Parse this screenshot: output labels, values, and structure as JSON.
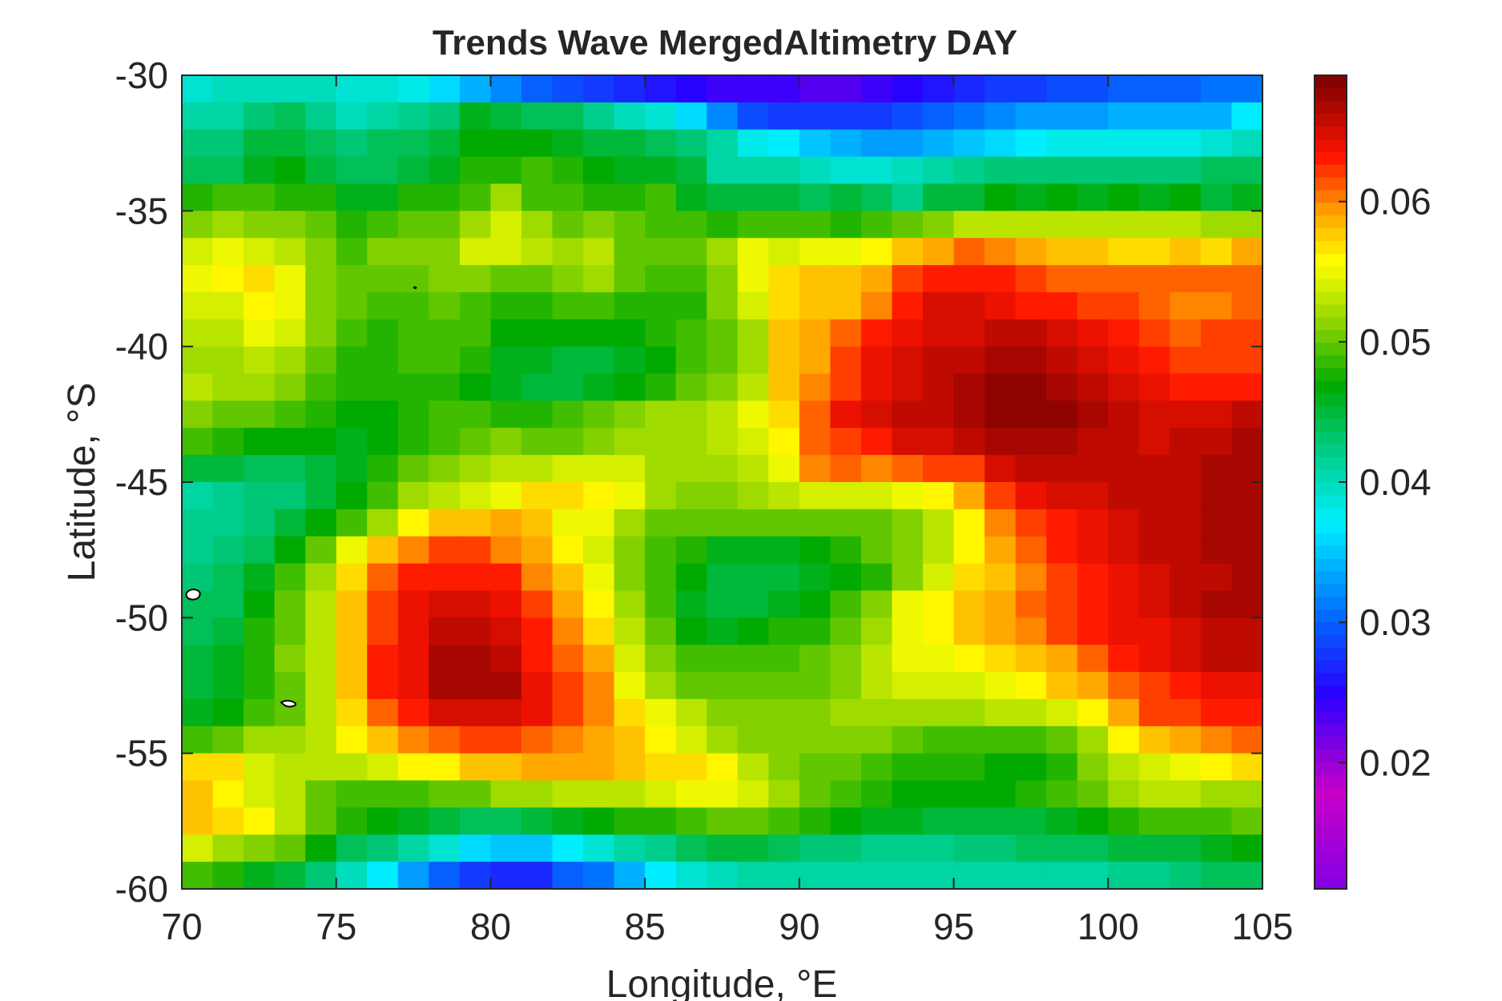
{
  "chart_data": {
    "type": "heatmap",
    "title": "Trends Wave MergedAltimetry DAY",
    "xlabel": "Longitude, °E",
    "ylabel": "Latitude, °S",
    "xlim": [
      70,
      105
    ],
    "ylim": [
      -60,
      -30
    ],
    "xticks": [
      "70",
      "75",
      "80",
      "85",
      "90",
      "95",
      "100",
      "105"
    ],
    "xtick_values": [
      70,
      75,
      80,
      85,
      90,
      95,
      100,
      105
    ],
    "yticks": [
      "-30",
      "-35",
      "-40",
      "-45",
      "-50",
      "-55",
      "-60"
    ],
    "ytick_values": [
      -30,
      -35,
      -40,
      -45,
      -50,
      -55,
      -60
    ],
    "colorbar": {
      "range": [
        0.011,
        0.069
      ],
      "ticks": [
        "0.02",
        "0.03",
        "0.04",
        "0.05",
        "0.06"
      ],
      "tick_values": [
        0.02,
        0.03,
        0.04,
        0.05,
        0.06
      ],
      "colormap": "jet-like (purple, blue, cyan, green, yellow, orange, red, dark red)"
    },
    "grid_cell_size_deg": 1,
    "grid_origin": {
      "lon": 70,
      "lat": -30
    },
    "grid_ncols": 35,
    "grid_nrows": 30,
    "land_outlines": "small islands near 70.3°E 49.5°S and 73.5°E 52.7°S",
    "values": [
      [
        0.039,
        0.04,
        0.04,
        0.04,
        0.04,
        0.039,
        0.039,
        0.038,
        0.036,
        0.034,
        0.032,
        0.03,
        0.029,
        0.028,
        0.027,
        0.026,
        0.025,
        0.024,
        0.024,
        0.024,
        0.023,
        0.023,
        0.024,
        0.025,
        0.026,
        0.027,
        0.028,
        0.028,
        0.029,
        0.029,
        0.03,
        0.03,
        0.03,
        0.031,
        0.031
      ],
      [
        0.041,
        0.041,
        0.043,
        0.044,
        0.042,
        0.04,
        0.041,
        0.042,
        0.043,
        0.046,
        0.045,
        0.044,
        0.044,
        0.042,
        0.04,
        0.039,
        0.036,
        0.032,
        0.029,
        0.028,
        0.028,
        0.028,
        0.028,
        0.029,
        0.03,
        0.031,
        0.032,
        0.033,
        0.033,
        0.033,
        0.034,
        0.034,
        0.034,
        0.034,
        0.037
      ],
      [
        0.043,
        0.043,
        0.045,
        0.045,
        0.044,
        0.043,
        0.044,
        0.044,
        0.045,
        0.047,
        0.047,
        0.047,
        0.046,
        0.045,
        0.045,
        0.044,
        0.043,
        0.041,
        0.038,
        0.037,
        0.035,
        0.034,
        0.033,
        0.033,
        0.034,
        0.035,
        0.036,
        0.037,
        0.038,
        0.038,
        0.038,
        0.038,
        0.038,
        0.039,
        0.04
      ],
      [
        0.044,
        0.044,
        0.046,
        0.047,
        0.045,
        0.044,
        0.044,
        0.045,
        0.046,
        0.048,
        0.048,
        0.049,
        0.048,
        0.047,
        0.046,
        0.046,
        0.045,
        0.041,
        0.041,
        0.041,
        0.04,
        0.039,
        0.039,
        0.04,
        0.041,
        0.042,
        0.043,
        0.043,
        0.043,
        0.043,
        0.043,
        0.043,
        0.043,
        0.044,
        0.044
      ],
      [
        0.048,
        0.049,
        0.049,
        0.048,
        0.048,
        0.046,
        0.046,
        0.048,
        0.048,
        0.049,
        0.052,
        0.049,
        0.049,
        0.048,
        0.048,
        0.049,
        0.046,
        0.045,
        0.045,
        0.045,
        0.044,
        0.045,
        0.044,
        0.042,
        0.045,
        0.045,
        0.047,
        0.046,
        0.047,
        0.046,
        0.047,
        0.046,
        0.047,
        0.045,
        0.046
      ],
      [
        0.051,
        0.052,
        0.051,
        0.051,
        0.05,
        0.048,
        0.049,
        0.05,
        0.05,
        0.052,
        0.054,
        0.052,
        0.05,
        0.051,
        0.05,
        0.049,
        0.049,
        0.048,
        0.049,
        0.049,
        0.049,
        0.048,
        0.049,
        0.05,
        0.051,
        0.053,
        0.053,
        0.053,
        0.053,
        0.053,
        0.053,
        0.053,
        0.053,
        0.052,
        0.052
      ],
      [
        0.054,
        0.055,
        0.054,
        0.053,
        0.051,
        0.049,
        0.051,
        0.051,
        0.051,
        0.054,
        0.054,
        0.053,
        0.052,
        0.053,
        0.05,
        0.05,
        0.05,
        0.052,
        0.055,
        0.054,
        0.055,
        0.055,
        0.056,
        0.058,
        0.059,
        0.061,
        0.06,
        0.059,
        0.058,
        0.058,
        0.057,
        0.057,
        0.058,
        0.057,
        0.059
      ],
      [
        0.055,
        0.056,
        0.057,
        0.055,
        0.051,
        0.05,
        0.05,
        0.05,
        0.051,
        0.051,
        0.05,
        0.05,
        0.051,
        0.052,
        0.05,
        0.049,
        0.049,
        0.051,
        0.055,
        0.057,
        0.058,
        0.058,
        0.059,
        0.062,
        0.063,
        0.063,
        0.063,
        0.062,
        0.061,
        0.061,
        0.061,
        0.061,
        0.061,
        0.061,
        0.061
      ],
      [
        0.054,
        0.054,
        0.056,
        0.055,
        0.051,
        0.05,
        0.049,
        0.049,
        0.05,
        0.049,
        0.048,
        0.048,
        0.049,
        0.049,
        0.048,
        0.048,
        0.048,
        0.051,
        0.054,
        0.057,
        0.058,
        0.058,
        0.06,
        0.063,
        0.065,
        0.065,
        0.064,
        0.063,
        0.063,
        0.062,
        0.062,
        0.061,
        0.06,
        0.06,
        0.061
      ],
      [
        0.053,
        0.053,
        0.055,
        0.054,
        0.051,
        0.049,
        0.048,
        0.049,
        0.049,
        0.049,
        0.047,
        0.047,
        0.047,
        0.047,
        0.047,
        0.048,
        0.049,
        0.05,
        0.052,
        0.058,
        0.059,
        0.061,
        0.063,
        0.064,
        0.065,
        0.065,
        0.066,
        0.066,
        0.065,
        0.064,
        0.063,
        0.062,
        0.061,
        0.062,
        0.062
      ],
      [
        0.052,
        0.052,
        0.053,
        0.052,
        0.05,
        0.048,
        0.048,
        0.049,
        0.049,
        0.048,
        0.046,
        0.046,
        0.045,
        0.045,
        0.046,
        0.047,
        0.049,
        0.05,
        0.052,
        0.058,
        0.059,
        0.062,
        0.064,
        0.065,
        0.066,
        0.066,
        0.067,
        0.067,
        0.066,
        0.065,
        0.064,
        0.063,
        0.062,
        0.062,
        0.062
      ],
      [
        0.053,
        0.052,
        0.052,
        0.051,
        0.049,
        0.048,
        0.048,
        0.048,
        0.048,
        0.047,
        0.046,
        0.045,
        0.045,
        0.046,
        0.047,
        0.048,
        0.05,
        0.051,
        0.053,
        0.058,
        0.06,
        0.062,
        0.064,
        0.065,
        0.066,
        0.067,
        0.068,
        0.068,
        0.067,
        0.066,
        0.065,
        0.064,
        0.063,
        0.063,
        0.063
      ],
      [
        0.051,
        0.05,
        0.05,
        0.049,
        0.048,
        0.047,
        0.047,
        0.048,
        0.049,
        0.049,
        0.048,
        0.048,
        0.049,
        0.05,
        0.051,
        0.052,
        0.052,
        0.053,
        0.055,
        0.057,
        0.061,
        0.064,
        0.065,
        0.066,
        0.066,
        0.067,
        0.068,
        0.068,
        0.068,
        0.067,
        0.066,
        0.065,
        0.065,
        0.065,
        0.066
      ],
      [
        0.049,
        0.048,
        0.047,
        0.047,
        0.047,
        0.046,
        0.047,
        0.048,
        0.049,
        0.05,
        0.051,
        0.05,
        0.05,
        0.051,
        0.052,
        0.052,
        0.052,
        0.053,
        0.054,
        0.056,
        0.061,
        0.062,
        0.063,
        0.065,
        0.065,
        0.066,
        0.067,
        0.067,
        0.067,
        0.066,
        0.066,
        0.065,
        0.066,
        0.066,
        0.067
      ],
      [
        0.045,
        0.045,
        0.044,
        0.044,
        0.045,
        0.046,
        0.048,
        0.05,
        0.051,
        0.052,
        0.053,
        0.053,
        0.054,
        0.054,
        0.054,
        0.052,
        0.052,
        0.052,
        0.053,
        0.055,
        0.06,
        0.061,
        0.06,
        0.061,
        0.062,
        0.062,
        0.065,
        0.066,
        0.066,
        0.066,
        0.066,
        0.066,
        0.066,
        0.067,
        0.067
      ],
      [
        0.041,
        0.042,
        0.043,
        0.043,
        0.045,
        0.047,
        0.049,
        0.052,
        0.053,
        0.054,
        0.055,
        0.057,
        0.057,
        0.056,
        0.055,
        0.052,
        0.051,
        0.051,
        0.052,
        0.053,
        0.054,
        0.054,
        0.054,
        0.055,
        0.056,
        0.059,
        0.062,
        0.064,
        0.065,
        0.065,
        0.066,
        0.066,
        0.066,
        0.067,
        0.067
      ],
      [
        0.042,
        0.042,
        0.043,
        0.045,
        0.047,
        0.049,
        0.052,
        0.056,
        0.058,
        0.058,
        0.059,
        0.058,
        0.055,
        0.055,
        0.052,
        0.05,
        0.05,
        0.05,
        0.05,
        0.05,
        0.05,
        0.05,
        0.05,
        0.051,
        0.053,
        0.056,
        0.06,
        0.062,
        0.063,
        0.064,
        0.065,
        0.066,
        0.066,
        0.067,
        0.067
      ],
      [
        0.042,
        0.043,
        0.044,
        0.047,
        0.05,
        0.055,
        0.058,
        0.06,
        0.062,
        0.062,
        0.06,
        0.059,
        0.056,
        0.054,
        0.051,
        0.049,
        0.048,
        0.046,
        0.046,
        0.046,
        0.047,
        0.048,
        0.05,
        0.051,
        0.053,
        0.056,
        0.059,
        0.061,
        0.063,
        0.064,
        0.065,
        0.066,
        0.066,
        0.067,
        0.067
      ],
      [
        0.043,
        0.044,
        0.046,
        0.049,
        0.052,
        0.057,
        0.061,
        0.063,
        0.063,
        0.063,
        0.063,
        0.06,
        0.058,
        0.055,
        0.051,
        0.049,
        0.047,
        0.045,
        0.045,
        0.045,
        0.046,
        0.047,
        0.048,
        0.051,
        0.054,
        0.057,
        0.058,
        0.06,
        0.062,
        0.063,
        0.064,
        0.065,
        0.066,
        0.066,
        0.067
      ],
      [
        0.044,
        0.044,
        0.047,
        0.05,
        0.053,
        0.058,
        0.062,
        0.064,
        0.065,
        0.065,
        0.064,
        0.062,
        0.059,
        0.056,
        0.052,
        0.049,
        0.046,
        0.045,
        0.045,
        0.046,
        0.047,
        0.049,
        0.051,
        0.055,
        0.056,
        0.058,
        0.059,
        0.061,
        0.062,
        0.063,
        0.064,
        0.065,
        0.066,
        0.067,
        0.067
      ],
      [
        0.044,
        0.045,
        0.048,
        0.05,
        0.053,
        0.058,
        0.062,
        0.064,
        0.066,
        0.066,
        0.065,
        0.063,
        0.06,
        0.057,
        0.053,
        0.05,
        0.047,
        0.046,
        0.047,
        0.048,
        0.048,
        0.05,
        0.052,
        0.055,
        0.056,
        0.058,
        0.059,
        0.06,
        0.062,
        0.063,
        0.064,
        0.064,
        0.065,
        0.066,
        0.066
      ],
      [
        0.045,
        0.046,
        0.048,
        0.051,
        0.053,
        0.058,
        0.063,
        0.064,
        0.067,
        0.067,
        0.066,
        0.063,
        0.061,
        0.059,
        0.054,
        0.051,
        0.049,
        0.049,
        0.049,
        0.049,
        0.05,
        0.051,
        0.053,
        0.055,
        0.055,
        0.056,
        0.057,
        0.058,
        0.059,
        0.061,
        0.063,
        0.064,
        0.065,
        0.066,
        0.066
      ],
      [
        0.045,
        0.046,
        0.048,
        0.05,
        0.053,
        0.058,
        0.063,
        0.064,
        0.067,
        0.067,
        0.067,
        0.064,
        0.062,
        0.06,
        0.055,
        0.052,
        0.05,
        0.05,
        0.05,
        0.05,
        0.05,
        0.051,
        0.053,
        0.054,
        0.054,
        0.054,
        0.055,
        0.056,
        0.058,
        0.059,
        0.061,
        0.062,
        0.063,
        0.064,
        0.064
      ],
      [
        0.046,
        0.047,
        0.049,
        0.05,
        0.053,
        0.057,
        0.061,
        0.063,
        0.065,
        0.065,
        0.065,
        0.064,
        0.062,
        0.06,
        0.057,
        0.055,
        0.053,
        0.051,
        0.051,
        0.051,
        0.051,
        0.052,
        0.052,
        0.052,
        0.052,
        0.052,
        0.053,
        0.053,
        0.054,
        0.056,
        0.059,
        0.062,
        0.062,
        0.063,
        0.063
      ],
      [
        0.049,
        0.05,
        0.052,
        0.052,
        0.053,
        0.056,
        0.058,
        0.06,
        0.061,
        0.062,
        0.062,
        0.061,
        0.06,
        0.059,
        0.058,
        0.056,
        0.054,
        0.052,
        0.051,
        0.051,
        0.051,
        0.051,
        0.051,
        0.05,
        0.049,
        0.049,
        0.049,
        0.049,
        0.05,
        0.052,
        0.056,
        0.058,
        0.059,
        0.06,
        0.061
      ],
      [
        0.057,
        0.057,
        0.054,
        0.053,
        0.053,
        0.053,
        0.054,
        0.056,
        0.056,
        0.058,
        0.058,
        0.059,
        0.059,
        0.059,
        0.058,
        0.057,
        0.057,
        0.056,
        0.053,
        0.051,
        0.05,
        0.05,
        0.049,
        0.048,
        0.048,
        0.048,
        0.047,
        0.047,
        0.048,
        0.051,
        0.053,
        0.054,
        0.055,
        0.056,
        0.057
      ],
      [
        0.058,
        0.056,
        0.054,
        0.053,
        0.05,
        0.049,
        0.049,
        0.049,
        0.05,
        0.05,
        0.052,
        0.052,
        0.053,
        0.053,
        0.053,
        0.054,
        0.055,
        0.055,
        0.054,
        0.052,
        0.05,
        0.049,
        0.048,
        0.047,
        0.047,
        0.047,
        0.047,
        0.048,
        0.049,
        0.05,
        0.052,
        0.053,
        0.053,
        0.052,
        0.052
      ],
      [
        0.058,
        0.057,
        0.056,
        0.053,
        0.05,
        0.048,
        0.047,
        0.046,
        0.045,
        0.044,
        0.044,
        0.045,
        0.046,
        0.047,
        0.048,
        0.048,
        0.049,
        0.05,
        0.05,
        0.049,
        0.048,
        0.047,
        0.046,
        0.046,
        0.045,
        0.045,
        0.045,
        0.045,
        0.046,
        0.047,
        0.048,
        0.049,
        0.049,
        0.049,
        0.05
      ],
      [
        0.054,
        0.052,
        0.051,
        0.05,
        0.047,
        0.044,
        0.043,
        0.041,
        0.039,
        0.036,
        0.035,
        0.035,
        0.037,
        0.039,
        0.041,
        0.042,
        0.044,
        0.045,
        0.045,
        0.044,
        0.043,
        0.043,
        0.042,
        0.042,
        0.042,
        0.043,
        0.043,
        0.044,
        0.044,
        0.044,
        0.045,
        0.045,
        0.045,
        0.046,
        0.047
      ],
      [
        0.049,
        0.048,
        0.046,
        0.045,
        0.043,
        0.04,
        0.037,
        0.033,
        0.03,
        0.028,
        0.027,
        0.027,
        0.03,
        0.031,
        0.034,
        0.037,
        0.039,
        0.04,
        0.041,
        0.041,
        0.041,
        0.041,
        0.041,
        0.041,
        0.041,
        0.041,
        0.041,
        0.041,
        0.041,
        0.041,
        0.042,
        0.042,
        0.043,
        0.044,
        0.044
      ]
    ]
  }
}
